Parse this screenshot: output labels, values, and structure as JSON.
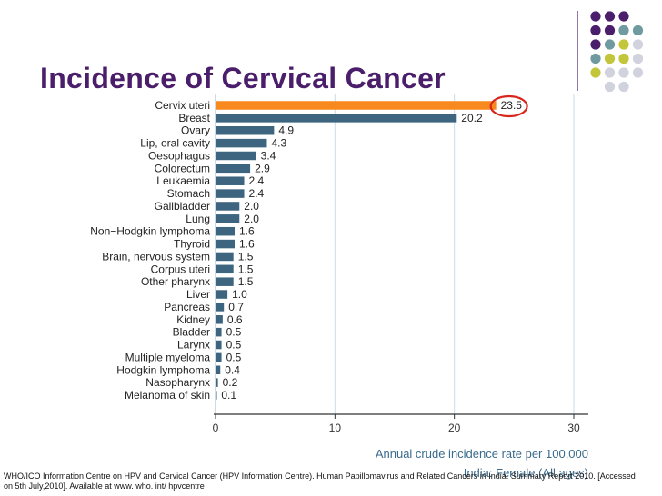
{
  "slide": {
    "title": "Incidence of Cervical Cancer",
    "source_line1": "WHO/ICO Information Centre on HPV and Cervical Cancer (HPV Information Centre). Human Papillomavirus and Related Cancers in India. Summary Report 2010. [Accessed",
    "source_line2": "on 5th July,2010]. Available at www. who. int/ hpvcentre"
  },
  "colors": {
    "title": "#4a1e6a",
    "bar": "#3d6580",
    "highlight_bar": "#f7891f",
    "highlight_circle": "#d9261c",
    "gridline": "#c7dde8",
    "axis_text": "#3a6b8c",
    "dot_purple": "#4a1e6a",
    "dot_teal": "#6e9aa0",
    "dot_olive": "#c3c63a",
    "dot_grey": "#d0d2de"
  },
  "chart_data": {
    "type": "bar",
    "orientation": "horizontal",
    "categories": [
      "Cervix uteri",
      "Breast",
      "Ovary",
      "Lip, oral cavity",
      "Oesophagus",
      "Colorectum",
      "Leukaemia",
      "Stomach",
      "Gallbladder",
      "Lung",
      "Non−Hodgkin lymphoma",
      "Thyroid",
      "Brain, nervous system",
      "Corpus uteri",
      "Other pharynx",
      "Liver",
      "Pancreas",
      "Kidney",
      "Bladder",
      "Larynx",
      "Multiple myeloma",
      "Hodgkin lymphoma",
      "Nasopharynx",
      "Melanoma of skin"
    ],
    "values": [
      23.5,
      20.2,
      4.9,
      4.3,
      3.4,
      2.9,
      2.4,
      2.4,
      2.0,
      2.0,
      1.6,
      1.6,
      1.5,
      1.5,
      1.5,
      1.0,
      0.7,
      0.6,
      0.5,
      0.5,
      0.5,
      0.4,
      0.2,
      0.1
    ],
    "value_labels": [
      "23.5",
      "20.2",
      "4.9",
      "4.3",
      "3.4",
      "2.9",
      "2.4",
      "2.4",
      "2.0",
      "2.0",
      "1.6",
      "1.6",
      "1.5",
      "1.5",
      "1.5",
      "1.0",
      "0.7",
      "0.6",
      "0.5",
      "0.5",
      "0.5",
      "0.4",
      "0.2",
      "0.1"
    ],
    "highlighted_category": "Cervix uteri",
    "xlim": [
      0,
      30
    ],
    "xticks": [
      0,
      10,
      20,
      30
    ],
    "xtick_labels": [
      "0",
      "10",
      "20",
      "30"
    ],
    "xlabel": "Annual crude incidence rate per 100,000",
    "subtitle": "India: Female (All ages)",
    "grid": "vertical"
  }
}
